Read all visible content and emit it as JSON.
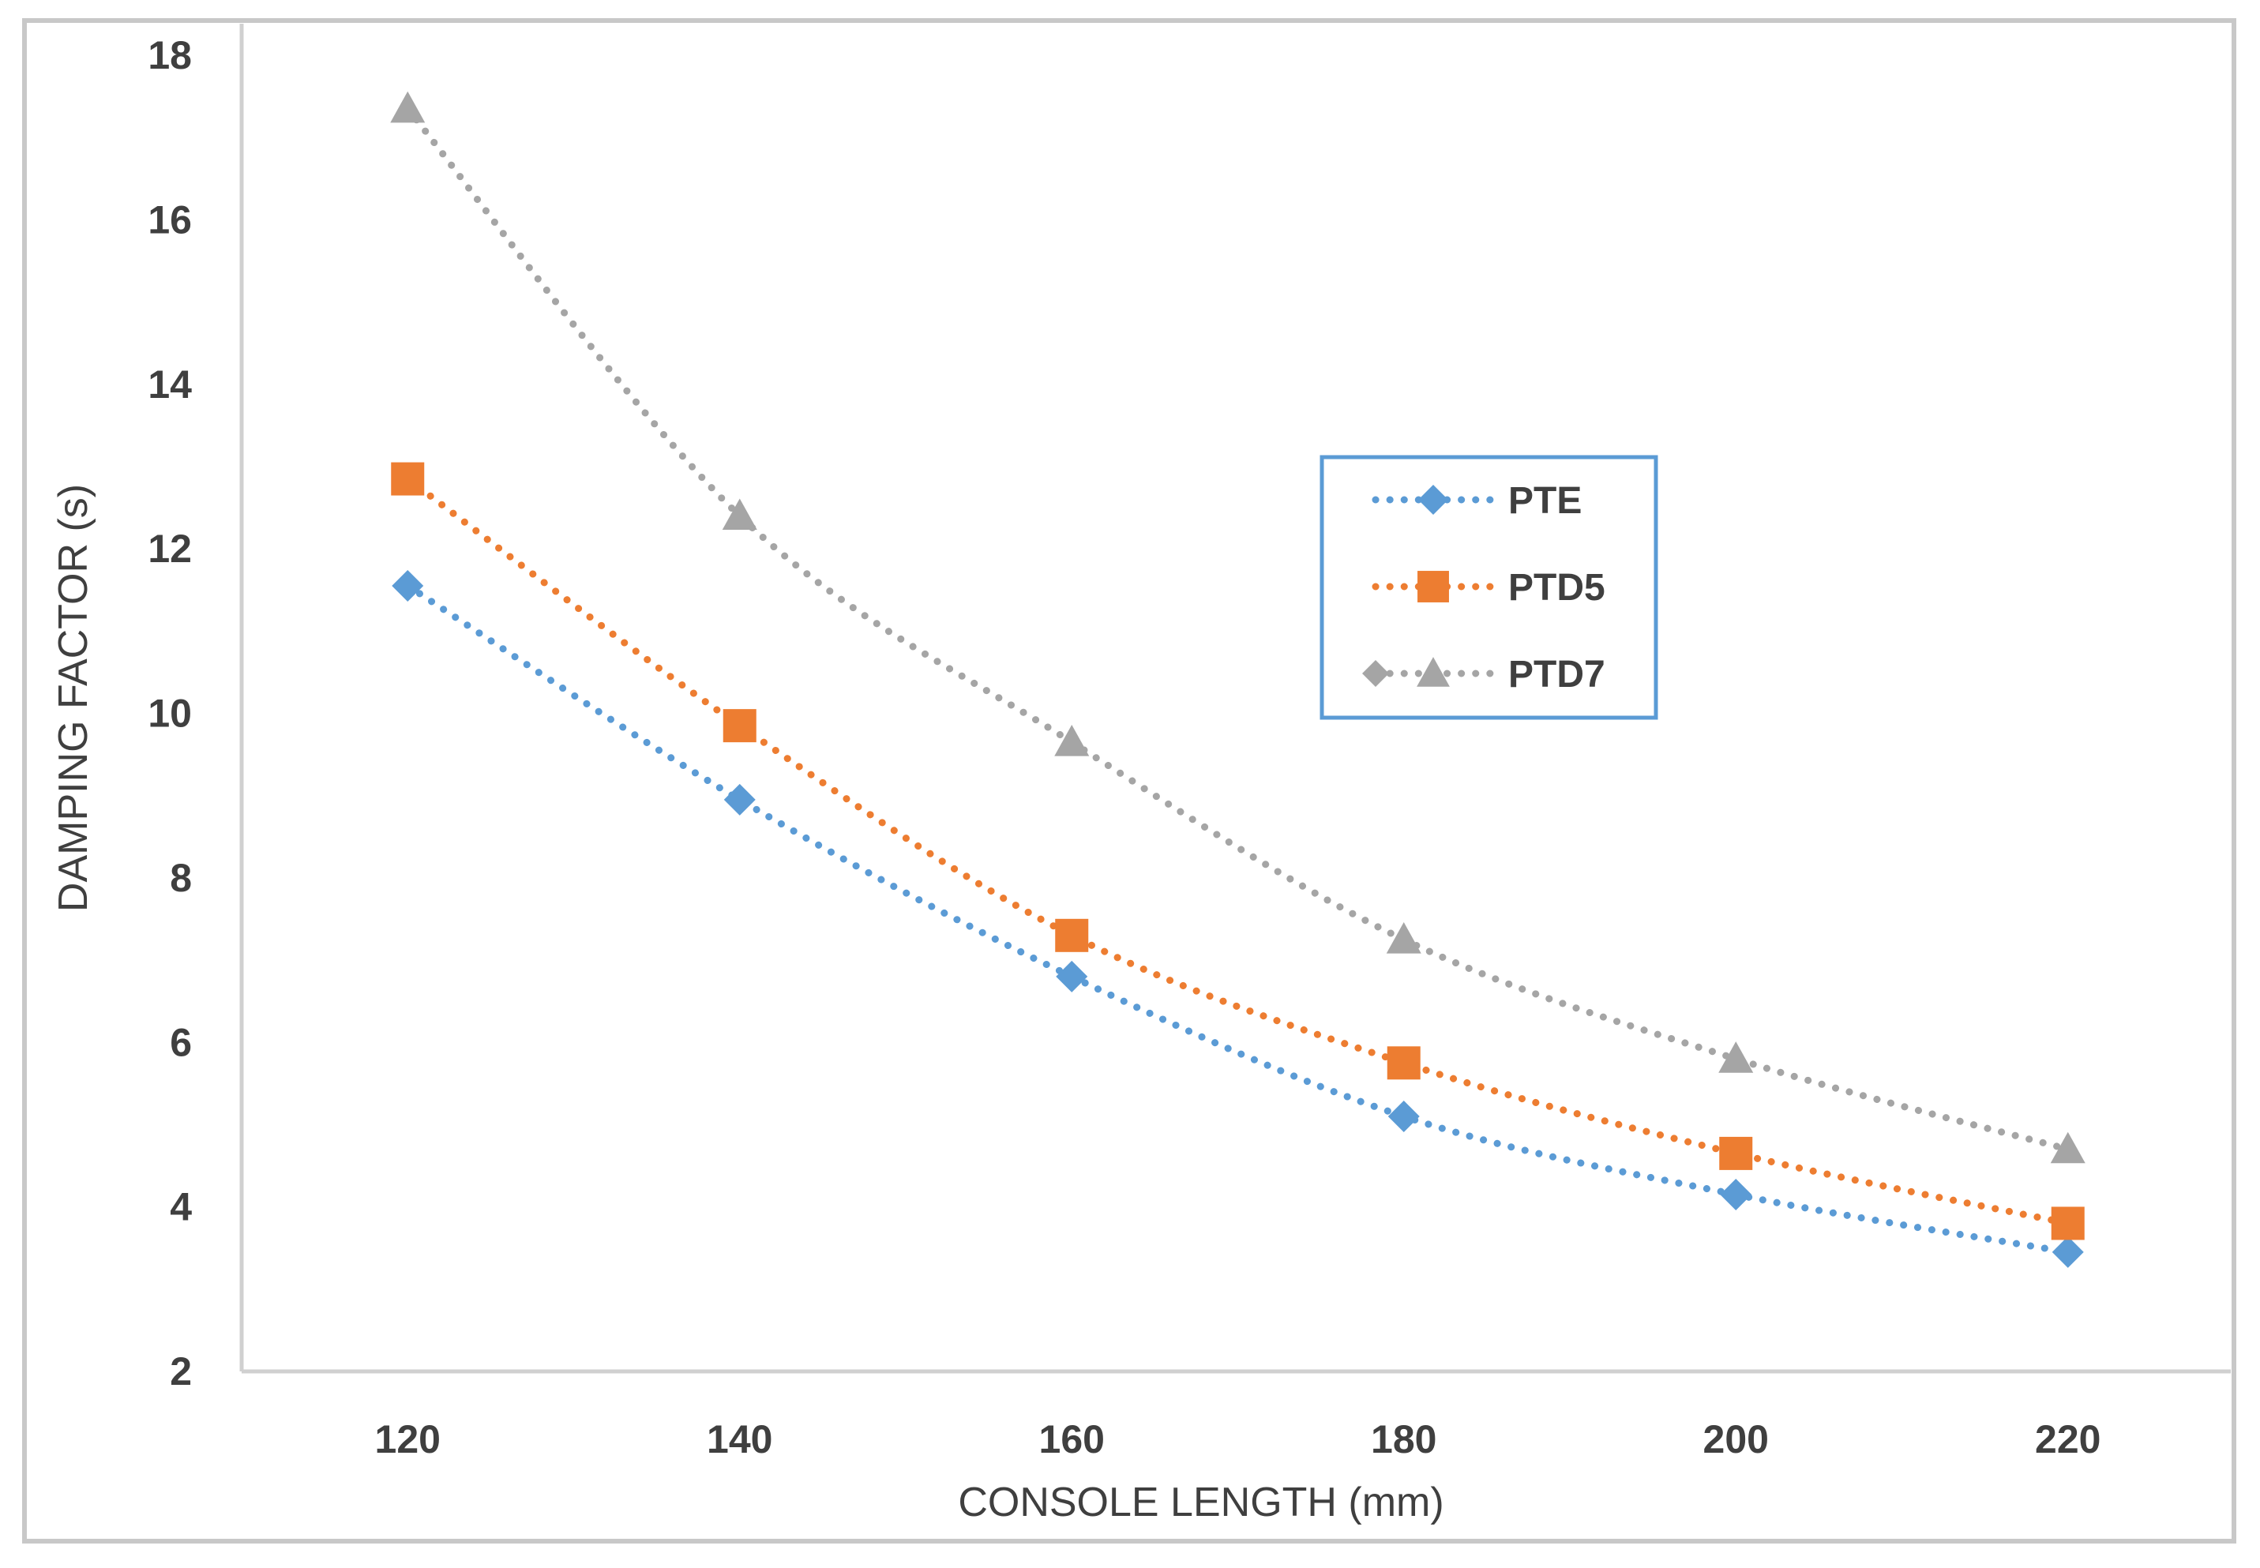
{
  "chart_data": {
    "type": "line",
    "title": "",
    "xlabel": "CONSOLE LENGTH  (mm)",
    "ylabel": "DAMPING FACTOR  (s)",
    "x": [
      120,
      140,
      160,
      180,
      200,
      220
    ],
    "xlim": [
      110,
      230
    ],
    "ylim": [
      2,
      18
    ],
    "xticks": [
      "120",
      "140",
      "160",
      "180",
      "200",
      "220"
    ],
    "yticks": [
      "2",
      "4",
      "6",
      "8",
      "10",
      "12",
      "14",
      "16",
      "18"
    ],
    "grid": false,
    "line_style": "dotted",
    "legend_position": "center-right",
    "series": [
      {
        "name": "PTE",
        "marker": "diamond",
        "color": "#5b9bd5",
        "values": [
          11.55,
          8.95,
          6.8,
          5.1,
          4.15,
          3.45
        ]
      },
      {
        "name": "PTD5",
        "marker": "square",
        "color": "#ed7d31",
        "values": [
          12.85,
          9.85,
          7.3,
          5.75,
          4.65,
          3.8
        ]
      },
      {
        "name": "PTD7",
        "marker": "triangle",
        "color": "#a5a5a5",
        "values": [
          17.35,
          12.4,
          9.65,
          7.25,
          5.8,
          4.7
        ]
      }
    ]
  }
}
